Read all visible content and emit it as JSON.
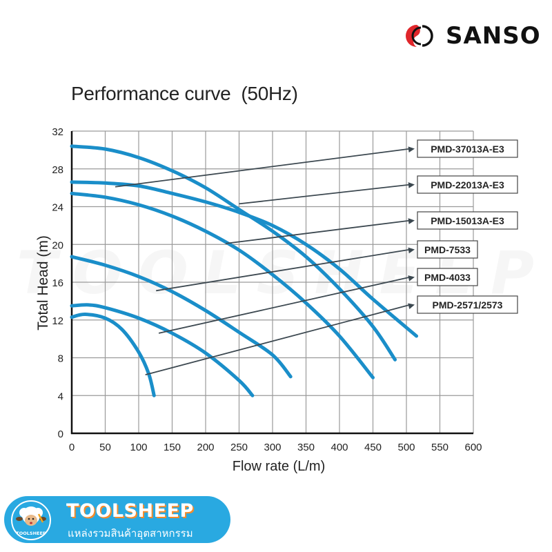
{
  "brand": {
    "name": "SANSO",
    "mark_colors": {
      "primary": "#e0262b",
      "secondary": "#111111"
    }
  },
  "footer": {
    "title": "TOOLSHEEP",
    "subtitle": "แหล่งรวมสินค้าอุตสาหกรรม",
    "logo_text": "TOOLSHEEP",
    "background": "#29a9e1",
    "accent": "#f28b2c"
  },
  "watermark": "TOOLSHEEP",
  "chart_data": {
    "type": "line",
    "title": "Performance curve  (50Hz)",
    "xlabel": "Flow rate (L/m)",
    "ylabel": "Total Head (m)",
    "xlim": [
      0,
      600
    ],
    "ylim": [
      0,
      32
    ],
    "xticks": [
      0,
      50,
      100,
      150,
      200,
      250,
      300,
      350,
      400,
      450,
      500,
      550,
      600
    ],
    "yticks": [
      0,
      4,
      8,
      12,
      16,
      20,
      24,
      28,
      32
    ],
    "grid": true,
    "legend_position": "right (boxed labels with leader arrows)",
    "line_color": "#1a8ec9",
    "series": [
      {
        "name": "PMD-37013A-E3",
        "points": [
          [
            0,
            26.6
          ],
          [
            50,
            26.5
          ],
          [
            100,
            26.2
          ],
          [
            150,
            25.4
          ],
          [
            200,
            24.5
          ],
          [
            250,
            23.4
          ],
          [
            300,
            22.0
          ],
          [
            350,
            20.0
          ],
          [
            400,
            17.4
          ],
          [
            450,
            14.2
          ],
          [
            515,
            10.3
          ]
        ],
        "leader_from": [
          65,
          26.1
        ]
      },
      {
        "name": "PMD-22013A-E3",
        "points": [
          [
            0,
            30.4
          ],
          [
            50,
            30.1
          ],
          [
            100,
            29.2
          ],
          [
            150,
            27.8
          ],
          [
            200,
            26.0
          ],
          [
            250,
            23.7
          ],
          [
            300,
            21.4
          ],
          [
            350,
            18.7
          ],
          [
            400,
            15.3
          ],
          [
            450,
            11.3
          ],
          [
            483,
            7.8
          ]
        ],
        "leader_from": [
          250,
          24.3
        ]
      },
      {
        "name": "PMD-15013A-E3",
        "points": [
          [
            0,
            25.4
          ],
          [
            50,
            25.0
          ],
          [
            100,
            24.2
          ],
          [
            150,
            23.0
          ],
          [
            200,
            21.4
          ],
          [
            250,
            19.4
          ],
          [
            300,
            16.8
          ],
          [
            350,
            13.8
          ],
          [
            400,
            10.3
          ],
          [
            450,
            5.9
          ]
        ],
        "leader_from": [
          230,
          20.1
        ]
      },
      {
        "name": "PMD-7533",
        "points": [
          [
            0,
            18.7
          ],
          [
            50,
            17.8
          ],
          [
            100,
            16.6
          ],
          [
            150,
            15.0
          ],
          [
            200,
            13.0
          ],
          [
            250,
            10.7
          ],
          [
            300,
            8.3
          ],
          [
            327,
            6.0
          ]
        ],
        "leader_from": [
          126,
          15.1
        ]
      },
      {
        "name": "PMD-4033",
        "points": [
          [
            0,
            13.5
          ],
          [
            25,
            13.6
          ],
          [
            50,
            13.3
          ],
          [
            100,
            12.2
          ],
          [
            150,
            10.6
          ],
          [
            200,
            8.5
          ],
          [
            250,
            5.6
          ],
          [
            270,
            4.0
          ]
        ],
        "leader_from": [
          130,
          10.6
        ]
      },
      {
        "name": "PMD-2571/2573",
        "points": [
          [
            0,
            12.3
          ],
          [
            20,
            12.6
          ],
          [
            50,
            12.2
          ],
          [
            75,
            11.0
          ],
          [
            100,
            8.6
          ],
          [
            115,
            6.3
          ],
          [
            123,
            4.0
          ]
        ],
        "leader_from": [
          110,
          6.2
        ]
      }
    ]
  }
}
